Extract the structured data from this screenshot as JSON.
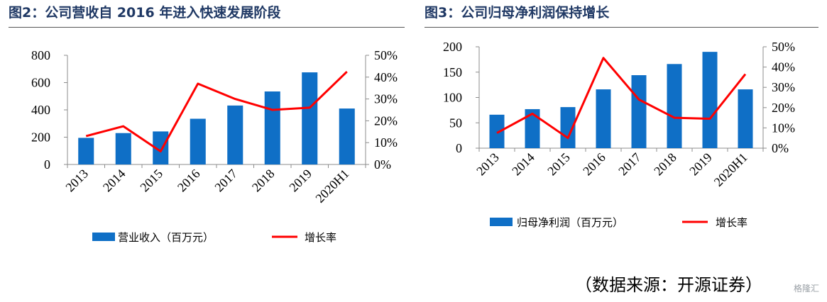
{
  "charts": [
    {
      "figure_title": "图2：公司营收自 2016 年进入快速发展阶段",
      "chart_data": {
        "type": "bar",
        "categories": [
          "2013",
          "2014",
          "2015",
          "2016",
          "2017",
          "2018",
          "2019",
          "2020H1"
        ],
        "series": [
          {
            "name": "营业收入（百万元）",
            "type": "bar",
            "axis": "left",
            "color": "#0f6fc6",
            "values": [
              195,
              230,
              242,
              335,
              432,
              535,
              675,
              410
            ]
          },
          {
            "name": "增长率",
            "type": "line",
            "axis": "right",
            "color": "#ff0000",
            "values": [
              13,
              17.5,
              6,
              37,
              30,
              25,
              26,
              42.5
            ]
          }
        ],
        "ylim_left": [
          0,
          800
        ],
        "yticks_left": [
          "0",
          "200",
          "400",
          "600",
          "800"
        ],
        "ylim_right": [
          0,
          50
        ],
        "yticks_right": [
          "0%",
          "10%",
          "20%",
          "30%",
          "40%",
          "50%"
        ],
        "legend": "bottom",
        "grid": false
      }
    },
    {
      "figure_title": "图3：公司归母净利润保持增长",
      "chart_data": {
        "type": "bar",
        "categories": [
          "2013",
          "2014",
          "2015",
          "2016",
          "2017",
          "2018",
          "2019",
          "2020H1"
        ],
        "series": [
          {
            "name": "归母净利润（百万元）",
            "type": "bar",
            "axis": "left",
            "color": "#0f6fc6",
            "values": [
              66,
              77,
              81,
              116,
              144,
              166,
              190,
              116
            ]
          },
          {
            "name": "增长率",
            "type": "line",
            "axis": "right",
            "color": "#ff0000",
            "values": [
              7.5,
              17,
              5,
              44.5,
              24,
              15,
              14.5,
              36.5
            ]
          }
        ],
        "ylim_left": [
          0,
          200
        ],
        "yticks_left": [
          "0",
          "50",
          "100",
          "150",
          "200"
        ],
        "ylim_right": [
          0,
          50
        ],
        "yticks_right": [
          "0%",
          "10%",
          "20%",
          "30%",
          "40%",
          "50%"
        ],
        "legend": "bottom",
        "grid": false
      }
    }
  ],
  "source_note": "（数据来源：开源证券）",
  "watermark": "格隆汇"
}
